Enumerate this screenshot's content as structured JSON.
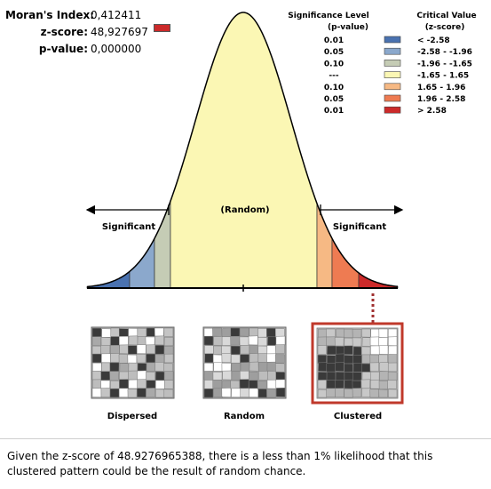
{
  "stats": {
    "morans_index_label": "Moran's Index:",
    "morans_index_value": "0,412411",
    "zscore_label": "z-score:",
    "zscore_value": "48,927697",
    "pvalue_label": "p-value:",
    "pvalue_value": "0,000000"
  },
  "legend": {
    "sig_header_line1": "Significance Level",
    "sig_header_line2": "(p-value)",
    "crit_header_line1": "Critical Value",
    "crit_header_line2": "(z-score)",
    "rows": [
      {
        "p": "0.01",
        "z": "< -2.58",
        "color": "#4a72b0"
      },
      {
        "p": "0.05",
        "z": "-2.58 - -1.96",
        "color": "#8ba8cc"
      },
      {
        "p": "0.10",
        "z": "-1.96 - -1.65",
        "color": "#c5ccb5"
      },
      {
        "p": "---",
        "z": "-1.65 - 1.65",
        "color": "#fbf7b4"
      },
      {
        "p": "0.10",
        "z": "1.65 - 1.96",
        "color": "#f6b984"
      },
      {
        "p": "0.05",
        "z": "1.96 - 2.58",
        "color": "#ee7b52"
      },
      {
        "p": "0.01",
        "z": "> 2.58",
        "color": "#cc2a2a"
      }
    ]
  },
  "curve": {
    "random_label": "(Random)",
    "significant_left": "Significant",
    "significant_right": "Significant"
  },
  "patterns": {
    "dispersed": "Dispersed",
    "random": "Random",
    "clustered": "Clustered",
    "highlight_color": "#c0392b"
  },
  "caption": "Given the z-score of 48.9276965388, there is a less than 1% likelihood that this clustered pattern could be the result of random chance."
}
